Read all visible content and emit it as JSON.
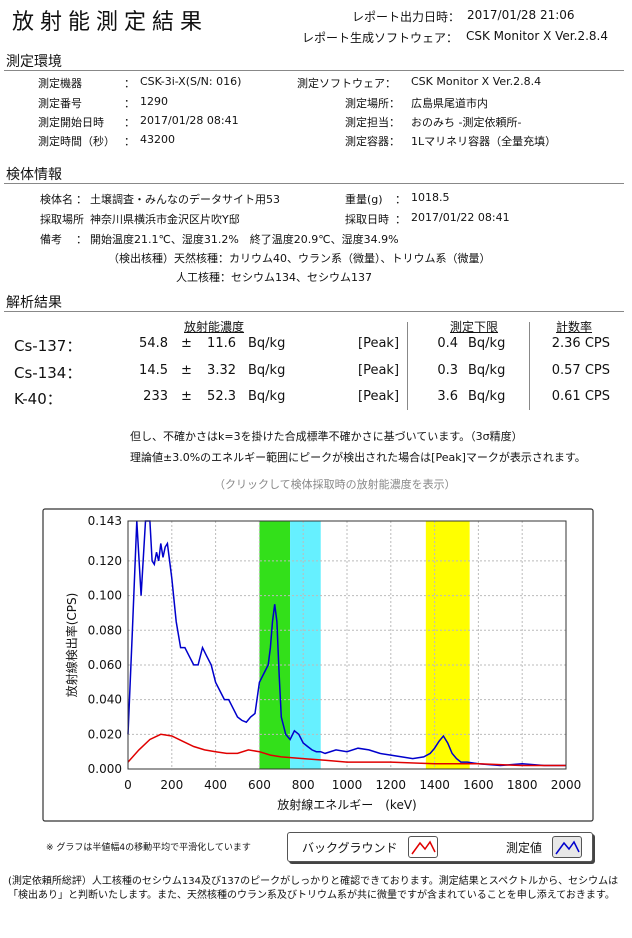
{
  "header": {
    "title": "放射能測定結果",
    "report_time_label": "レポート出力日時：",
    "report_time": "2017/01/28 21:06",
    "software_label": "レポート生成ソフトウェア：",
    "software": "CSK Monitor X Ver.2.8.4"
  },
  "env": {
    "section": "測定環境",
    "device_label": "測定機器",
    "device": "CSK-3i-X(S/N: 016)",
    "number_label": "測定番号",
    "number": "1290",
    "start_label": "測定開始日時",
    "start": "2017/01/28 08:41",
    "duration_label": "測定時間（秒）",
    "duration": "43200",
    "sw_label": "測定ソフトウェア：",
    "sw": "CSK Monitor X Ver.2.8.4",
    "place_label": "測定場所：",
    "place": "広島県尾道市内",
    "staff_label": "測定担当：",
    "staff": "おのみち -測定依頼所-",
    "container_label": "測定容器：",
    "container": "1Lマリネリ容器（全量充填）",
    "colon": "："
  },
  "sample": {
    "section": "検体情報",
    "name_label": "検体名",
    "name": "土壌調査・みんなのデータサイト用53",
    "weight_label": "重量(g)",
    "weight": "1018.5",
    "loc_label": "採取場所",
    "loc": "神奈川県横浜市金沢区片吹Y邸",
    "date_label": "採取日時",
    "date": "2017/01/22 08:41",
    "note_label": "備考",
    "note1": "開始温度21.1℃、湿度31.2%　終了温度20.9℃、湿度34.9%",
    "note2": "（検出核種）天然核種：カリウム40、ウラン系（微量）、トリウム系（微量）",
    "note3": "人工核種：セシウム134、セシウム137"
  },
  "analysis": {
    "section": "解析結果",
    "col_conc": "放射能濃度",
    "col_limit": "測定下限",
    "col_rate": "計数率",
    "rows": [
      {
        "iso": "Cs-137：",
        "val": "54.8",
        "pm": "±",
        "err": "11.6",
        "unit": "Bq/kg",
        "peak": "[Peak]",
        "lim": "0.4",
        "lim_unit": "Bq/kg",
        "rate": "2.36 CPS"
      },
      {
        "iso": "Cs-134：",
        "val": "14.5",
        "pm": "±",
        "err": "3.32",
        "unit": "Bq/kg",
        "peak": "[Peak]",
        "lim": "0.3",
        "lim_unit": "Bq/kg",
        "rate": "0.57 CPS"
      },
      {
        "iso": "K-40：",
        "val": "233",
        "pm": "±",
        "err": "52.3",
        "unit": "Bq/kg",
        "peak": "[Peak]",
        "lim": "3.6",
        "lim_unit": "Bq/kg",
        "rate": "0.61 CPS"
      }
    ],
    "note1": "但し、不確かさはk=3を掛けた合成標準不確かさに基づいています。（3σ精度）",
    "note2": "理論値±3.0%のエネルギー範囲にピークが検出された場合は[Peak]マークが表示されます。",
    "click": "（クリックして検体採取時の放射能濃度を表示）"
  },
  "chart_data": {
    "type": "line",
    "xlabel": "放射線エネルギー　(keV)",
    "ylabel": "放射線検出率(CPS)",
    "xlim": [
      0,
      2000
    ],
    "ylim": [
      0,
      0.143
    ],
    "xticks": [
      0,
      200,
      400,
      600,
      800,
      1000,
      1200,
      1400,
      1600,
      1800,
      2000
    ],
    "yticks": [
      0.0,
      0.02,
      0.04,
      0.06,
      0.08,
      0.1,
      0.12,
      0.143
    ],
    "ytick_labels": [
      "0.000",
      "0.020",
      "0.040",
      "0.060",
      "0.080",
      "0.100",
      "0.120",
      "0.143"
    ],
    "grid": true,
    "bands": [
      {
        "from": 600,
        "to": 740,
        "color": "#33e01a"
      },
      {
        "from": 740,
        "to": 880,
        "color": "#66f0ff"
      },
      {
        "from": 1360,
        "to": 1560,
        "color": "#ffff00"
      }
    ],
    "series": [
      {
        "name": "測定値",
        "color": "#0000cc",
        "x": [
          0,
          20,
          40,
          60,
          80,
          100,
          110,
          120,
          130,
          140,
          150,
          160,
          170,
          180,
          190,
          200,
          220,
          240,
          260,
          280,
          300,
          320,
          340,
          360,
          380,
          400,
          420,
          440,
          460,
          480,
          500,
          520,
          540,
          560,
          580,
          600,
          620,
          640,
          650,
          660,
          670,
          680,
          690,
          700,
          720,
          740,
          760,
          780,
          800,
          820,
          840,
          860,
          880,
          900,
          950,
          1000,
          1050,
          1100,
          1150,
          1200,
          1250,
          1300,
          1350,
          1380,
          1400,
          1420,
          1440,
          1460,
          1480,
          1500,
          1520,
          1550,
          1600,
          1700,
          1800,
          1900,
          2000
        ],
        "y": [
          0.02,
          0.08,
          0.143,
          0.1,
          0.143,
          0.143,
          0.12,
          0.118,
          0.125,
          0.12,
          0.13,
          0.122,
          0.128,
          0.13,
          0.12,
          0.11,
          0.085,
          0.07,
          0.07,
          0.065,
          0.06,
          0.06,
          0.07,
          0.065,
          0.06,
          0.05,
          0.045,
          0.04,
          0.04,
          0.035,
          0.03,
          0.028,
          0.027,
          0.03,
          0.032,
          0.05,
          0.055,
          0.06,
          0.07,
          0.085,
          0.095,
          0.085,
          0.055,
          0.03,
          0.02,
          0.017,
          0.022,
          0.02,
          0.015,
          0.013,
          0.011,
          0.01,
          0.01,
          0.009,
          0.011,
          0.01,
          0.012,
          0.011,
          0.009,
          0.008,
          0.007,
          0.006,
          0.007,
          0.009,
          0.012,
          0.016,
          0.019,
          0.015,
          0.009,
          0.006,
          0.004,
          0.004,
          0.003,
          0.002,
          0.003,
          0.002,
          0.002
        ]
      },
      {
        "name": "バックグラウンド",
        "color": "#e00000",
        "x": [
          0,
          50,
          100,
          150,
          200,
          250,
          300,
          350,
          400,
          450,
          500,
          550,
          600,
          650,
          700,
          800,
          900,
          1000,
          1200,
          1400,
          1600,
          1800,
          2000
        ],
        "y": [
          0.004,
          0.011,
          0.017,
          0.02,
          0.019,
          0.016,
          0.013,
          0.011,
          0.01,
          0.009,
          0.009,
          0.011,
          0.01,
          0.008,
          0.007,
          0.006,
          0.005,
          0.004,
          0.004,
          0.003,
          0.003,
          0.002,
          0.002
        ]
      }
    ]
  },
  "legend": {
    "bg_label": "バックグラウンド",
    "meas_label": "測定値"
  },
  "footnote": "※ グラフは半値幅4の移動平均で平滑化しています",
  "comment1": "(測定依頼所総評）人工核種のセシウム134及び137のピークがしっかりと確認できております。測定結果とスペクトルから、セシウムは",
  "comment2": "「検出あり」と判断いたします。また、天然核種のウラン系及びトリウム系が共に微量ですが含まれていることを申し添えておきます。"
}
